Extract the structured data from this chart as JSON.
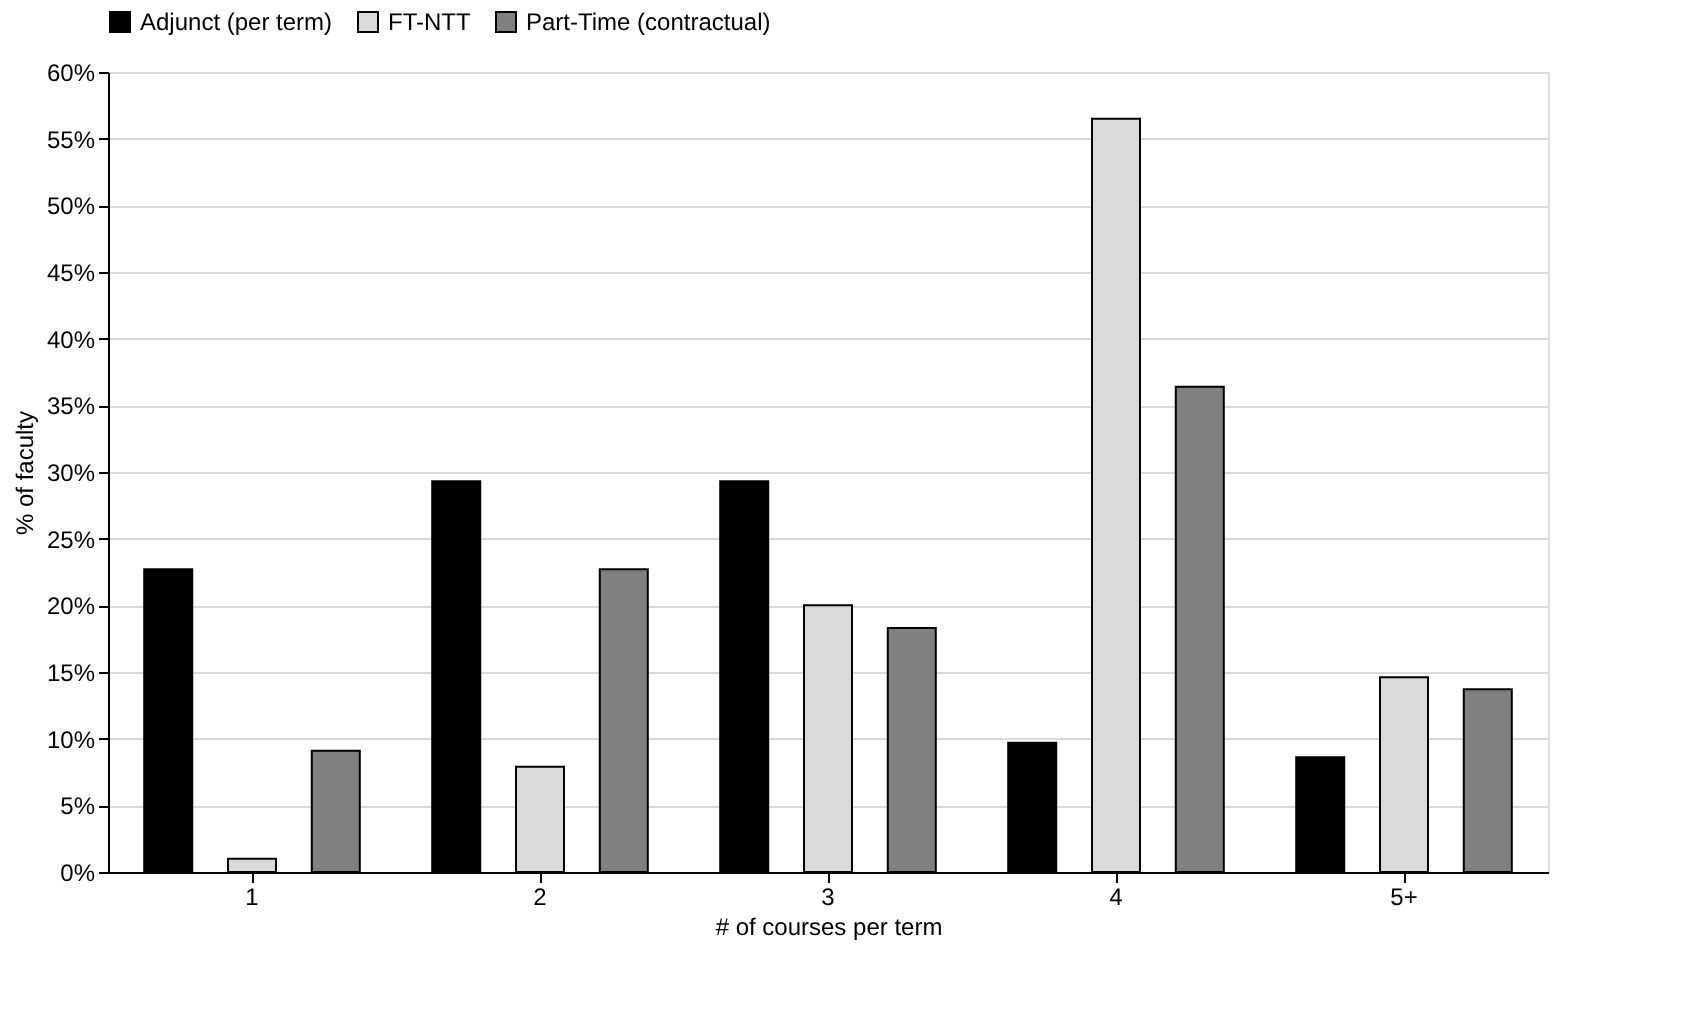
{
  "chart_data": {
    "type": "bar",
    "xlabel": "# of courses per term",
    "ylabel": "% of faculty",
    "categories": [
      "1",
      "2",
      "3",
      "4",
      "5+"
    ],
    "series": [
      {
        "name": "Adjunct (per term)",
        "color": "#000000",
        "values": [
          22.7,
          29.3,
          29.3,
          9.7,
          8.6
        ]
      },
      {
        "name": "FT-NTT",
        "color": "#d9d9d9",
        "values": [
          1.0,
          7.9,
          20.0,
          56.5,
          14.6
        ]
      },
      {
        "name": "Part-Time (contractual)",
        "color": "#808080",
        "values": [
          9.1,
          22.7,
          18.3,
          36.4,
          13.7
        ]
      }
    ],
    "ylim": [
      0,
      60
    ],
    "yticks": [
      {
        "value": 0,
        "label": "0%"
      },
      {
        "value": 5,
        "label": "5%"
      },
      {
        "value": 10,
        "label": "10%"
      },
      {
        "value": 15,
        "label": "15%"
      },
      {
        "value": 20,
        "label": "20%"
      },
      {
        "value": 25,
        "label": "25%"
      },
      {
        "value": 30,
        "label": "30%"
      },
      {
        "value": 35,
        "label": "35%"
      },
      {
        "value": 40,
        "label": "40%"
      },
      {
        "value": 45,
        "label": "45%"
      },
      {
        "value": 50,
        "label": "50%"
      },
      {
        "value": 55,
        "label": "55%"
      },
      {
        "value": 60,
        "label": "60%"
      }
    ],
    "grid": "y",
    "legend": "top"
  }
}
